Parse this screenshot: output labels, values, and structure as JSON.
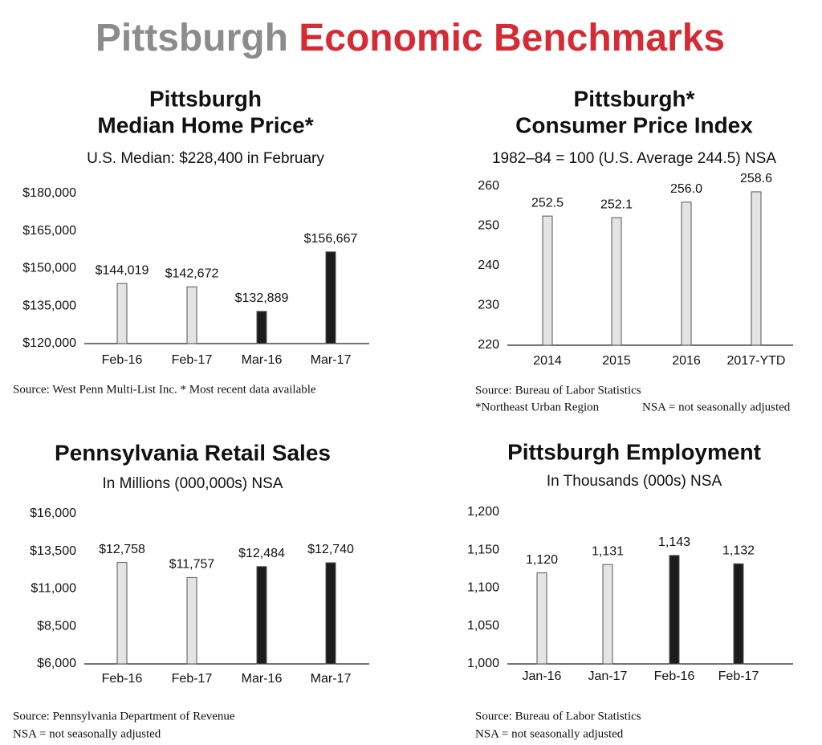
{
  "title": [
    "Pittsburgh",
    "Economic Benchmarks"
  ],
  "chart_data": [
    {
      "type": "bar",
      "title": [
        "Pittsburgh",
        "Median Home Price*"
      ],
      "subtitle": "U.S. Median: $228,400 in February",
      "categories": [
        "Feb-16",
        "Feb-17",
        "Mar-16",
        "Mar-17"
      ],
      "values": [
        144019,
        142672,
        132889,
        156667
      ],
      "value_labels": [
        "$144,019",
        "$142,672",
        "$132,889",
        "$156,667"
      ],
      "colors": [
        "#e4e4e4",
        "#e4e4e4",
        "#1c1c1c",
        "#1c1c1c"
      ],
      "ylim": [
        120000,
        180000
      ],
      "yticks": [
        {
          "value": 120000,
          "label": "$120,000"
        },
        {
          "value": 135000,
          "label": "$135,000"
        },
        {
          "value": 150000,
          "label": "$150,000"
        },
        {
          "value": 165000,
          "label": "$165,000"
        },
        {
          "value": 180000,
          "label": "$180,000"
        }
      ],
      "source": [
        "Source: West Penn Multi-List Inc. * Most recent data available"
      ]
    },
    {
      "type": "bar",
      "title": [
        "Pittsburgh*",
        "Consumer Price Index"
      ],
      "subtitle": "1982–84 = 100 (U.S. Average 244.5) NSA",
      "categories": [
        "2014",
        "2015",
        "2016",
        "2017-YTD"
      ],
      "values": [
        252.5,
        252.1,
        256.0,
        258.6
      ],
      "value_labels": [
        "252.5",
        "252.1",
        "256.0",
        "258.6"
      ],
      "colors": [
        "#e4e4e4",
        "#e4e4e4",
        "#e4e4e4",
        "#e4e4e4"
      ],
      "ylim": [
        220,
        260
      ],
      "yticks": [
        220,
        230,
        240,
        250,
        260
      ],
      "source": [
        "Source: Bureau of Labor Statistics",
        "*Northeast Urban Region",
        "NSA = not seasonally adjusted"
      ]
    },
    {
      "type": "bar",
      "title": [
        "Pennsylvania Retail Sales"
      ],
      "subtitle": "In Millions (000,000s) NSA",
      "categories": [
        "Feb-16",
        "Feb-17",
        "Mar-16",
        "Mar-17"
      ],
      "values": [
        12758,
        11757,
        12484,
        12740
      ],
      "value_labels": [
        "$12,758",
        "$11,757",
        "$12,484",
        "$12,740"
      ],
      "colors": [
        "#e4e4e4",
        "#e4e4e4",
        "#1c1c1c",
        "#1c1c1c"
      ],
      "ylim": [
        6000,
        16000
      ],
      "yticks": [
        {
          "value": 6000,
          "label": "$6,000"
        },
        {
          "value": 8500,
          "label": "$8,500"
        },
        {
          "value": 11000,
          "label": "$11,000"
        },
        {
          "value": 13500,
          "label": "$13,500"
        },
        {
          "value": 16000,
          "label": "$16,000"
        }
      ],
      "source": [
        "Source: Pennsylvania Department of Revenue",
        "NSA = not seasonally adjusted"
      ]
    },
    {
      "type": "bar",
      "title": [
        "Pittsburgh Employment"
      ],
      "subtitle": "In Thousands (000s) NSA",
      "categories": [
        "Jan-16",
        "Jan-17",
        "Feb-16",
        "Feb-17"
      ],
      "values": [
        1120,
        1131,
        1143,
        1132
      ],
      "value_labels": [
        "1,120",
        "1,131",
        "1,143",
        "1,132"
      ],
      "colors": [
        "#e4e4e4",
        "#e4e4e4",
        "#1c1c1c",
        "#1c1c1c"
      ],
      "ylim": [
        1000,
        1200
      ],
      "yticks": [
        {
          "value": 1000,
          "label": "1,000"
        },
        {
          "value": 1050,
          "label": "1,050"
        },
        {
          "value": 1100,
          "label": "1,100"
        },
        {
          "value": 1150,
          "label": "1,150"
        },
        {
          "value": 1200,
          "label": "1,200"
        }
      ],
      "source": [
        "Source: Bureau of Labor Statistics",
        "NSA = not seasonally adjusted"
      ]
    }
  ]
}
